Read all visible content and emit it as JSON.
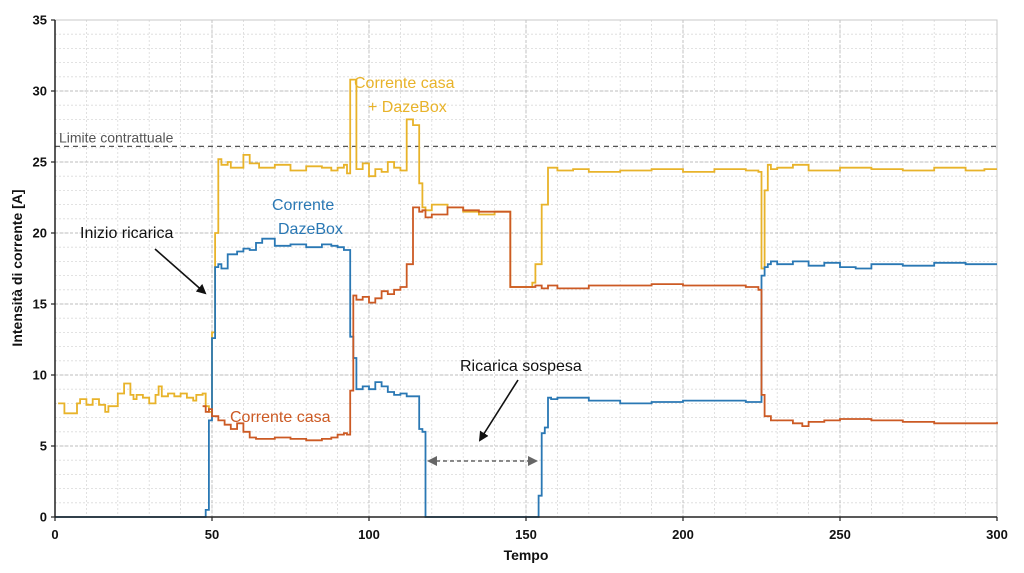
{
  "chart_data": {
    "type": "line",
    "title": "",
    "xlabel": "Tempo",
    "ylabel": "Intensità di corrente [A]",
    "xlim": [
      0,
      300
    ],
    "ylim": [
      0,
      35
    ],
    "xticks": [
      0,
      50,
      100,
      150,
      200,
      250,
      300
    ],
    "yticks": [
      0,
      5,
      10,
      15,
      20,
      25,
      30,
      35
    ],
    "grid": true,
    "step": true,
    "reference_line": {
      "label": "Limite contrattuale",
      "value": 26.1,
      "color": "#555555"
    },
    "series": [
      {
        "name": "Corrente casa + DazeBox",
        "color": "#E8B32A",
        "x": [
          1,
          3,
          7,
          8,
          10,
          12,
          14,
          16,
          17,
          20,
          22,
          24,
          25,
          26,
          28,
          30,
          32,
          33,
          34,
          36,
          38,
          40,
          42,
          44,
          45,
          47,
          48,
          49,
          50,
          51,
          52,
          53,
          55,
          56,
          60,
          62,
          65,
          70,
          75,
          80,
          85,
          88,
          90,
          92,
          93,
          94,
          96,
          98,
          100,
          102,
          104,
          106,
          108,
          110,
          112,
          114,
          116,
          117,
          118,
          120,
          125,
          130,
          135,
          140,
          145,
          150,
          152,
          153,
          155,
          157,
          160,
          165,
          170,
          180,
          190,
          200,
          210,
          220,
          224,
          225,
          226,
          227,
          228,
          230,
          235,
          240,
          250,
          260,
          270,
          280,
          290,
          296,
          300
        ],
        "y": [
          8.0,
          7.3,
          8.0,
          8.3,
          7.9,
          8.3,
          7.9,
          7.4,
          7.8,
          8.7,
          9.4,
          8.6,
          8.3,
          8.6,
          8.4,
          8.0,
          8.6,
          9.2,
          8.5,
          8.7,
          8.5,
          8.7,
          8.4,
          8.2,
          8.6,
          8.7,
          7.8,
          7.4,
          13.0,
          20.0,
          25.2,
          24.8,
          25.0,
          24.6,
          25.5,
          24.9,
          24.6,
          24.8,
          24.4,
          24.7,
          24.6,
          24.4,
          24.6,
          24.8,
          24.2,
          30.8,
          24.5,
          24.9,
          24.0,
          24.5,
          24.3,
          25.0,
          24.6,
          24.4,
          28.0,
          27.6,
          23.5,
          21.8,
          21.6,
          22.0,
          21.8,
          21.5,
          21.3,
          21.5,
          16.2,
          16.2,
          16.5,
          17.8,
          22.0,
          24.6,
          24.4,
          24.5,
          24.3,
          24.4,
          24.5,
          24.3,
          24.5,
          24.4,
          24.3,
          17.5,
          23.0,
          24.8,
          24.5,
          24.6,
          24.8,
          24.4,
          24.6,
          24.5,
          24.4,
          24.6,
          24.4,
          24.5,
          24.5
        ]
      },
      {
        "name": "Corrente DazeBox",
        "color": "#2A78B4",
        "x": [
          0,
          47,
          48,
          49,
          50,
          51,
          52,
          53,
          55,
          58,
          60,
          62,
          64,
          66,
          70,
          75,
          80,
          85,
          88,
          90,
          92,
          93,
          94,
          95,
          96,
          98,
          100,
          102,
          104,
          106,
          108,
          110,
          112,
          114,
          116,
          117,
          118,
          120,
          125,
          130,
          135,
          140,
          145,
          150,
          152,
          153,
          154,
          155,
          156,
          157,
          158,
          160,
          170,
          180,
          190,
          200,
          210,
          220,
          224,
          225,
          226,
          227,
          228,
          230,
          235,
          240,
          245,
          250,
          255,
          260,
          270,
          280,
          290,
          300
        ],
        "y": [
          0.0,
          0.0,
          0.5,
          6.8,
          12.6,
          17.6,
          17.8,
          17.5,
          18.5,
          18.7,
          18.9,
          18.8,
          19.3,
          19.6,
          19.1,
          19.2,
          19.0,
          19.2,
          19.1,
          19.0,
          18.8,
          18.8,
          12.7,
          11.2,
          9.0,
          9.2,
          9.0,
          9.5,
          9.2,
          8.8,
          8.6,
          8.7,
          8.5,
          8.5,
          6.2,
          6.0,
          0.0,
          0.0,
          0.0,
          0.0,
          0.0,
          0.0,
          0.0,
          0.0,
          0.0,
          0.0,
          1.5,
          5.9,
          6.3,
          8.4,
          8.3,
          8.4,
          8.2,
          8.0,
          8.1,
          8.2,
          8.2,
          8.1,
          8.1,
          17.0,
          17.6,
          17.8,
          18.0,
          17.8,
          18.0,
          17.7,
          17.9,
          17.6,
          17.5,
          17.8,
          17.7,
          17.9,
          17.8,
          17.8
        ]
      },
      {
        "name": "Corrente casa",
        "color": "#CC5A24",
        "x": [
          47,
          48,
          49,
          50,
          52,
          54,
          56,
          58,
          60,
          62,
          64,
          66,
          70,
          75,
          80,
          85,
          88,
          90,
          92,
          93,
          94,
          95,
          96,
          98,
          100,
          102,
          104,
          106,
          108,
          110,
          112,
          114,
          116,
          117,
          118,
          120,
          125,
          130,
          135,
          140,
          145,
          150,
          152,
          153,
          155,
          157,
          160,
          170,
          180,
          190,
          200,
          210,
          220,
          224,
          225,
          226,
          228,
          230,
          235,
          238,
          240,
          245,
          250,
          260,
          270,
          280,
          290,
          300
        ],
        "y": [
          7.8,
          7.4,
          7.6,
          7.1,
          6.8,
          6.5,
          6.2,
          6.6,
          6.0,
          5.6,
          5.5,
          5.5,
          5.6,
          5.5,
          5.4,
          5.5,
          5.6,
          5.8,
          5.9,
          5.8,
          8.9,
          15.6,
          15.3,
          15.5,
          15.1,
          15.4,
          15.9,
          15.7,
          16.0,
          16.2,
          17.8,
          21.8,
          21.5,
          21.6,
          21.1,
          21.3,
          21.8,
          21.6,
          21.5,
          21.5,
          16.2,
          16.2,
          16.2,
          16.3,
          16.1,
          16.3,
          16.1,
          16.3,
          16.3,
          16.4,
          16.3,
          16.3,
          16.2,
          16.0,
          8.6,
          7.1,
          6.8,
          6.8,
          6.6,
          6.4,
          6.7,
          6.8,
          6.9,
          6.8,
          6.7,
          6.6,
          6.6,
          6.7
        ]
      }
    ],
    "annotations": [
      {
        "text": "Inizio ricarica"
      },
      {
        "text": "Corrente"
      },
      {
        "text": "DazeBox"
      },
      {
        "text": "Corrente casa"
      },
      {
        "text": "+ DazeBox"
      },
      {
        "text": "Corrente casa"
      },
      {
        "text": "Ricarica sospesa"
      }
    ]
  }
}
